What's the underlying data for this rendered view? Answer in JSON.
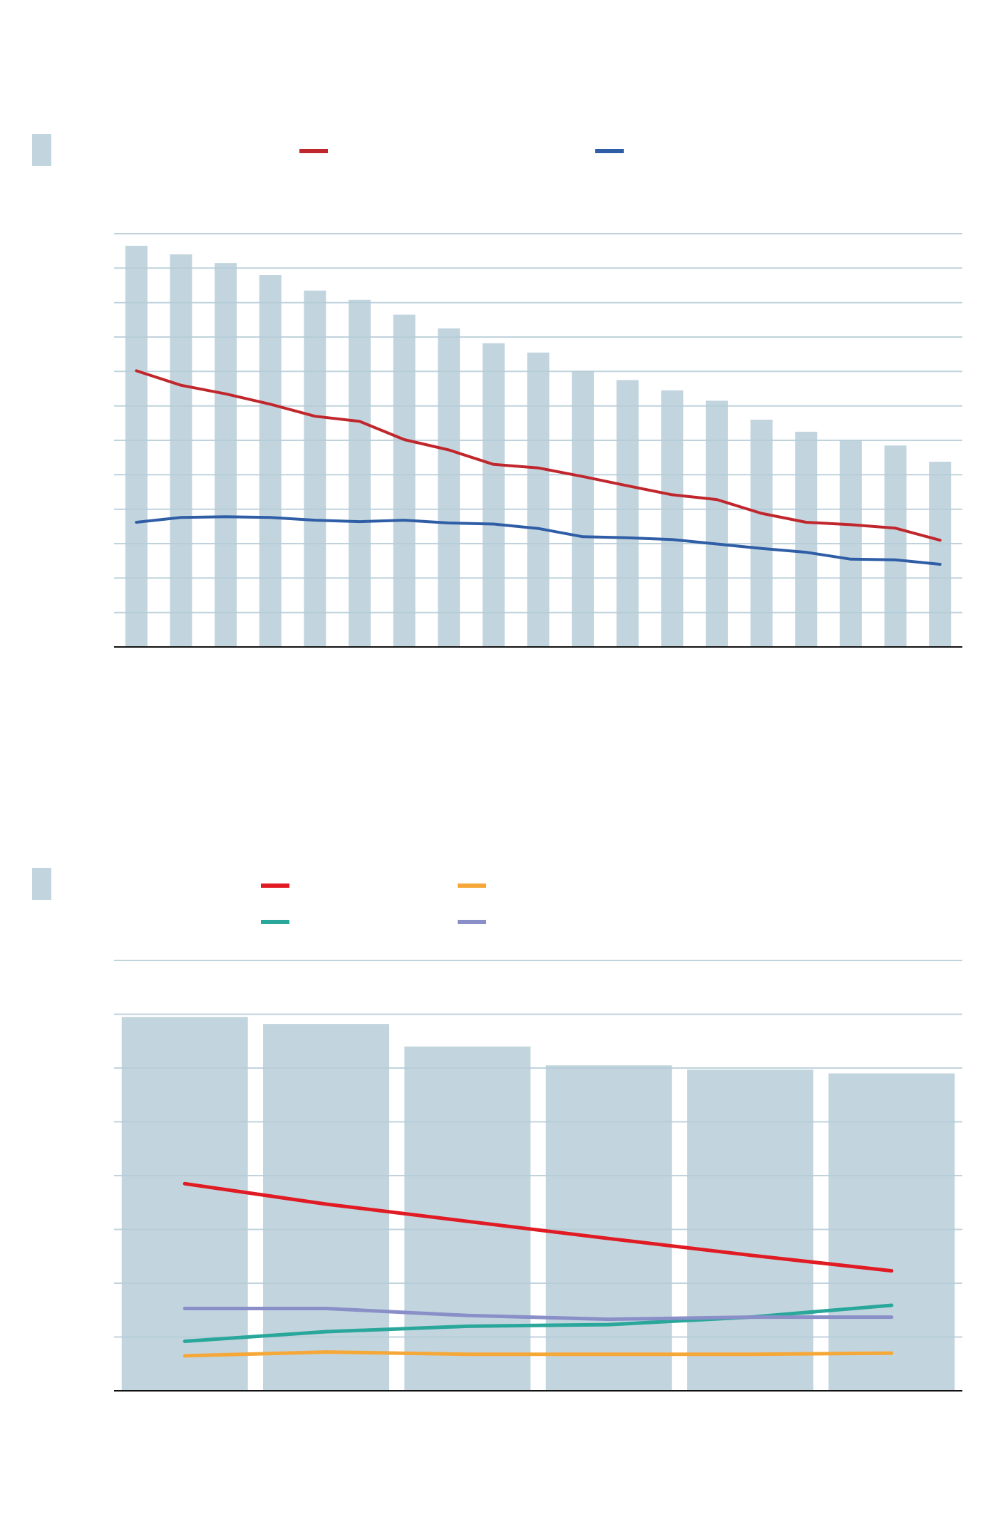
{
  "colors": {
    "bar": "#c2d5de",
    "grid": "#b6ccd8",
    "axis": "#111111",
    "red_series": "#c0272d",
    "blue_series": "#2f5ea6",
    "red2": "#e01b24",
    "orange": "#f5a838",
    "teal": "#2aa79b",
    "lavender": "#8a8fc8"
  },
  "chart_data": [
    {
      "type": "bar",
      "title": "",
      "xlabel": "",
      "ylabel": "",
      "ylim": [
        0,
        12
      ],
      "grid": true,
      "legend": {
        "placement": "top",
        "entries": [
          {
            "symbol": "bar",
            "label": "",
            "color": "#c2d5de"
          },
          {
            "symbol": "line",
            "label": "",
            "color": "#c0272d"
          },
          {
            "symbol": "line",
            "label": "",
            "color": "#2f5ea6"
          }
        ]
      },
      "categories": [
        "",
        "",
        "",
        "",
        "",
        "",
        "",
        "",
        "",
        "",
        "",
        "",
        "",
        "",
        "",
        "",
        "",
        "",
        ""
      ],
      "series": [
        {
          "kind": "bar",
          "color": "#c2d5de",
          "values": [
            11.65,
            11.4,
            11.15,
            10.8,
            10.35,
            10.08,
            9.65,
            9.25,
            8.82,
            8.55,
            8.02,
            7.75,
            7.45,
            7.15,
            6.6,
            6.25,
            6.0,
            5.85,
            5.38
          ]
        },
        {
          "kind": "line",
          "color": "#c0272d",
          "values": [
            8.02,
            7.6,
            7.35,
            7.05,
            6.7,
            6.55,
            6.02,
            5.72,
            5.3,
            5.2,
            4.95,
            4.68,
            4.42,
            4.28,
            3.88,
            3.62,
            3.55,
            3.45,
            3.1
          ]
        },
        {
          "kind": "line",
          "color": "#2f5ea6",
          "values": [
            3.62,
            3.76,
            3.78,
            3.76,
            3.68,
            3.64,
            3.68,
            3.6,
            3.57,
            3.44,
            3.2,
            3.17,
            3.12,
            2.99,
            2.86,
            2.75,
            2.55,
            2.53,
            2.4
          ]
        }
      ]
    },
    {
      "type": "bar",
      "title": "",
      "xlabel": "",
      "ylabel": "",
      "ylim": [
        0,
        8
      ],
      "grid": true,
      "legend": {
        "placement": "top",
        "entries": [
          {
            "symbol": "bar",
            "label": "",
            "color": "#c2d5de"
          },
          {
            "symbol": "line",
            "label": "",
            "color": "#e01b24"
          },
          {
            "symbol": "line",
            "label": "",
            "color": "#f5a838"
          },
          {
            "symbol": "line",
            "label": "",
            "color": "#2aa79b"
          },
          {
            "symbol": "line",
            "label": "",
            "color": "#8a8fc8"
          }
        ]
      },
      "categories": [
        "",
        "",
        "",
        "",
        "",
        ""
      ],
      "series": [
        {
          "kind": "bar",
          "color": "#c2d5de",
          "values": [
            6.95,
            6.82,
            6.4,
            6.05,
            5.97,
            5.9
          ]
        },
        {
          "kind": "line",
          "color": "#e01b24",
          "values": [
            3.85,
            3.47,
            3.15,
            2.83,
            2.52,
            2.23
          ]
        },
        {
          "kind": "line",
          "color": "#f5a838",
          "values": [
            0.65,
            0.72,
            0.68,
            0.68,
            0.68,
            0.7
          ]
        },
        {
          "kind": "line",
          "color": "#2aa79b",
          "values": [
            0.92,
            1.1,
            1.2,
            1.23,
            1.37,
            1.59
          ]
        },
        {
          "kind": "line",
          "color": "#8a8fc8",
          "values": [
            1.53,
            1.53,
            1.4,
            1.33,
            1.37,
            1.37
          ]
        }
      ]
    }
  ]
}
